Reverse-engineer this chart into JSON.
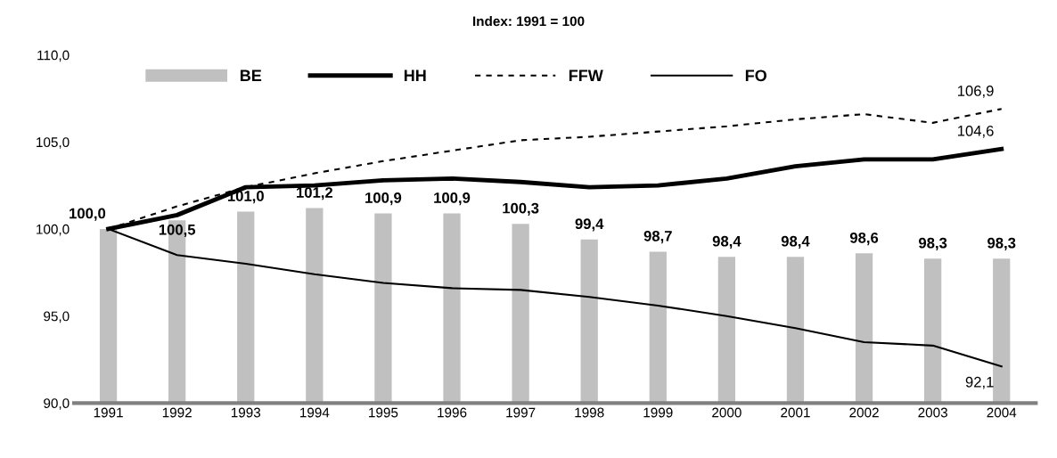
{
  "chart_data": {
    "type": "bar",
    "title": "Index: 1991 = 100",
    "categories": [
      "1991",
      "1992",
      "1993",
      "1994",
      "1995",
      "1996",
      "1997",
      "1998",
      "1999",
      "2000",
      "2001",
      "2002",
      "2003",
      "2004"
    ],
    "series": [
      {
        "name": "BE",
        "type": "bar",
        "color": "#c0c0c0",
        "values": [
          100.0,
          100.5,
          101.0,
          101.2,
          100.9,
          100.9,
          100.3,
          99.4,
          98.7,
          98.4,
          98.4,
          98.6,
          98.3,
          98.3
        ],
        "value_labels": [
          "100,0",
          "100,5",
          "101,0",
          "101,2",
          "100,9",
          "100,9",
          "100,3",
          "99,4",
          "98,7",
          "98,4",
          "98,4",
          "98,6",
          "98,3",
          "98,3"
        ]
      },
      {
        "name": "HH",
        "type": "line",
        "color": "#000000",
        "line_style": "solid",
        "values": [
          100.0,
          100.8,
          102.4,
          102.5,
          102.8,
          102.9,
          102.7,
          102.4,
          102.5,
          102.9,
          103.6,
          104.0,
          104.0,
          104.6
        ],
        "value_labels": [
          null,
          null,
          null,
          null,
          null,
          null,
          null,
          null,
          null,
          null,
          null,
          null,
          null,
          "104,6"
        ]
      },
      {
        "name": "FFW",
        "type": "line",
        "color": "#000000",
        "line_style": "dotted",
        "values": [
          100.0,
          101.3,
          102.4,
          103.2,
          103.9,
          104.5,
          105.1,
          105.3,
          105.6,
          105.9,
          106.3,
          106.6,
          106.1,
          106.9
        ],
        "value_labels": [
          null,
          null,
          null,
          null,
          null,
          null,
          null,
          null,
          null,
          null,
          null,
          null,
          null,
          "106,9"
        ]
      },
      {
        "name": "FO",
        "type": "line",
        "color": "#000000",
        "line_style": "solid",
        "values": [
          100.0,
          98.5,
          98.0,
          97.4,
          96.9,
          96.6,
          96.5,
          96.1,
          95.6,
          95.0,
          94.3,
          93.5,
          93.3,
          92.1
        ],
        "value_labels": [
          null,
          null,
          null,
          null,
          null,
          null,
          null,
          null,
          null,
          null,
          null,
          null,
          null,
          "92,1"
        ]
      }
    ],
    "ylim": [
      90,
      110
    ],
    "yticks": [
      {
        "value": 90,
        "label": "90,0"
      },
      {
        "value": 95,
        "label": "95,0"
      },
      {
        "value": 100,
        "label": "100,0"
      },
      {
        "value": 105,
        "label": "105,0"
      },
      {
        "value": 110,
        "label": "110,0"
      }
    ],
    "grid": false,
    "legend": "top"
  }
}
